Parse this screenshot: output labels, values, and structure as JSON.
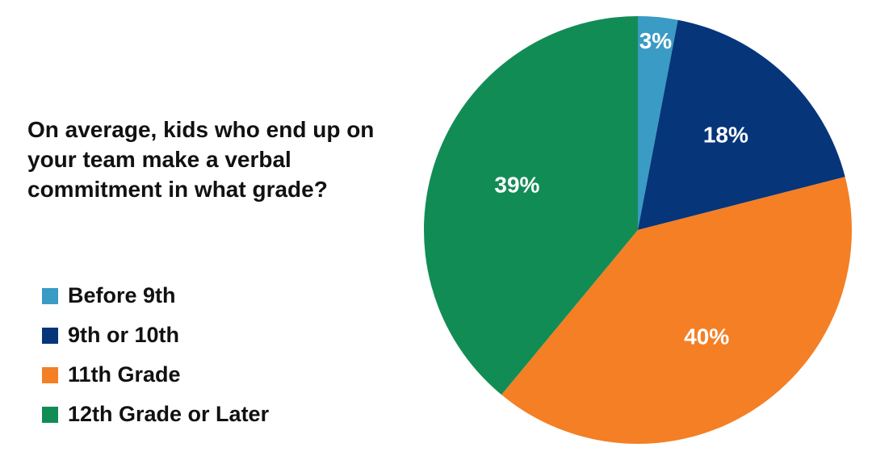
{
  "chart_data": {
    "type": "pie",
    "title": "On average, kids who end up on your team make a verbal commitment in what grade?",
    "categories": [
      "Before 9th",
      "9th or 10th",
      "11th Grade",
      "12th Grade or Later"
    ],
    "values": [
      3,
      18,
      40,
      39
    ],
    "value_labels": [
      "3%",
      "18%",
      "40%",
      "39%"
    ],
    "colors": [
      "#3a9bc4",
      "#06357a",
      "#f47f24",
      "#128c55"
    ],
    "legend": "left"
  }
}
